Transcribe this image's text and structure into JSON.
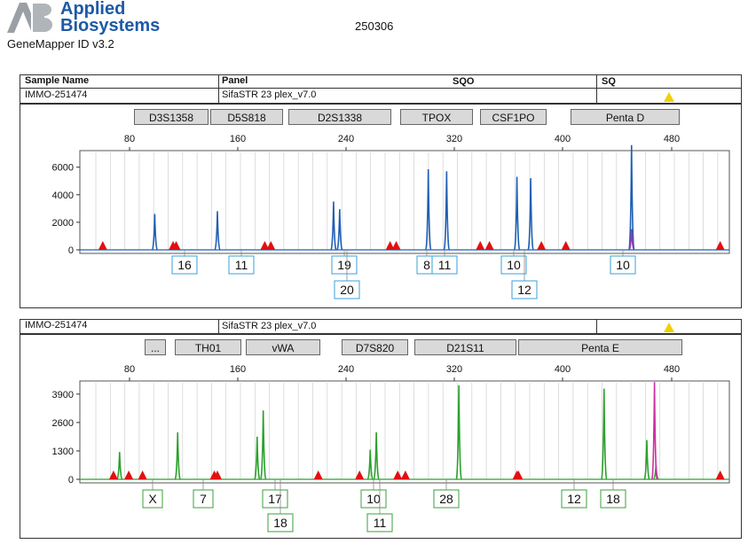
{
  "header": {
    "brand_line1": "Applied",
    "brand_line2": "Biosystems",
    "software": "GeneMapper ID v3.2",
    "run_id": "250306",
    "table": {
      "col_sample": "Sample Name",
      "col_panel": "Panel",
      "col_sqo": "SQO",
      "col_sq": "SQ",
      "sample": "IMMO-251474",
      "panel": "SifaSTR 23 plex_v7.0"
    }
  },
  "colors": {
    "blue_dye": "#1f5fb4",
    "green_dye": "#2ca02c",
    "size_marker": "#e01010",
    "warning": "#f2cf00"
  },
  "panels": [
    {
      "sample": "IMMO-251474",
      "panel": "SifaSTR 23 plex_v7.0",
      "markers": [
        "D3S1358",
        "D5S818",
        "D2S1338",
        "TPOX",
        "CSF1PO",
        "Penta D"
      ],
      "x_ticks": [
        "80",
        "160",
        "240",
        "320",
        "400",
        "480"
      ],
      "y_ticks": [
        "0",
        "2000",
        "4000",
        "6000"
      ],
      "alleles_row1": [
        "16",
        "11",
        "19",
        "8",
        "11",
        "10",
        "10"
      ],
      "alleles_row2": [
        "20",
        "12"
      ]
    },
    {
      "sample": "IMMO-251474",
      "panel": "SifaSTR 23 plex_v7.0",
      "markers": [
        "...",
        "TH01",
        "vWA",
        "D7S820",
        "D21S11",
        "Penta E"
      ],
      "x_ticks": [
        "80",
        "160",
        "240",
        "320",
        "400",
        "480"
      ],
      "y_ticks": [
        "0",
        "1300",
        "2600",
        "3900"
      ],
      "alleles_row1": [
        "X",
        "7",
        "17",
        "10",
        "28",
        "12",
        "18"
      ],
      "alleles_row2": [
        "18",
        "11"
      ]
    }
  ],
  "chart_data": [
    {
      "type": "line",
      "dye": "blue",
      "xlabel": "",
      "ylabel": "",
      "xlim": [
        70,
        495
      ],
      "ylim": [
        0,
        7200
      ],
      "grid": true,
      "series": [
        {
          "color": "#1f5fb4",
          "peaks": [
            [
              119,
              2600
            ],
            [
              160,
              2800
            ],
            [
              236,
              3500
            ],
            [
              240,
              2950
            ],
            [
              298,
              5850
            ],
            [
              310,
              5700
            ],
            [
              356,
              5300
            ],
            [
              365,
              5200
            ],
            [
              431,
              7600
            ]
          ]
        },
        {
          "color": "#8a3fb0",
          "peaks": [
            [
              431,
              1500
            ]
          ]
        }
      ],
      "size_standard": [
        85,
        131,
        133,
        191,
        195,
        273,
        277,
        332,
        338,
        372,
        388,
        489
      ]
    },
    {
      "type": "line",
      "dye": "green",
      "xlabel": "",
      "ylabel": "",
      "xlim": [
        70,
        495
      ],
      "ylim": [
        0,
        4500
      ],
      "grid": true,
      "series": [
        {
          "color": "#2ca02c",
          "peaks": [
            [
              96,
              1250
            ],
            [
              134,
              2150
            ],
            [
              186,
              1950
            ],
            [
              190,
              3150
            ],
            [
              260,
              1350
            ],
            [
              264,
              2150
            ],
            [
              318,
              4300
            ],
            [
              413,
              4150
            ],
            [
              441,
              1800
            ],
            [
              447,
              650
            ]
          ]
        },
        {
          "color": "#cc2fa0",
          "peaks": [
            [
              446,
              4450
            ]
          ]
        }
      ],
      "size_standard": [
        92,
        102,
        111,
        158,
        160,
        226,
        253,
        278,
        283,
        356,
        357,
        489
      ]
    }
  ]
}
